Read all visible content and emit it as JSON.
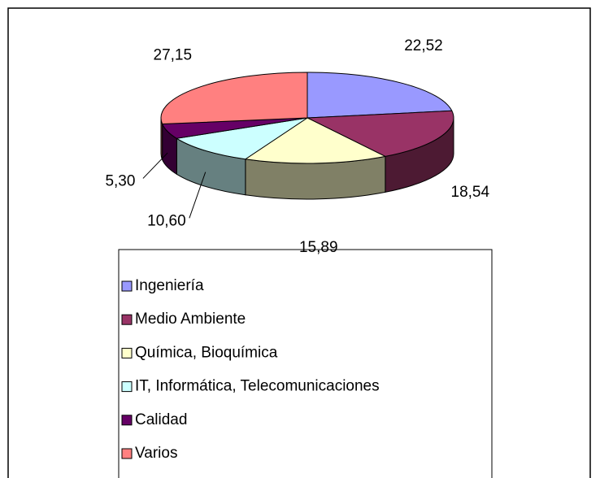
{
  "chart_data": {
    "type": "pie",
    "categories": [
      "Ingeniería",
      "Medio Ambiente",
      "Química, Bioquímica",
      "IT, Informática, Telecomunicaciones",
      "Calidad",
      "Varios"
    ],
    "values": [
      22.52,
      18.54,
      15.89,
      10.6,
      5.3,
      27.15
    ],
    "value_labels": [
      "22,52",
      "18,54",
      "15,89",
      "10,60",
      "5,30",
      "27,15"
    ],
    "colors": [
      "#9999ff",
      "#993366",
      "#ffffcc",
      "#ccffff",
      "#660066",
      "#ff8080"
    ],
    "legend": "bottom"
  }
}
